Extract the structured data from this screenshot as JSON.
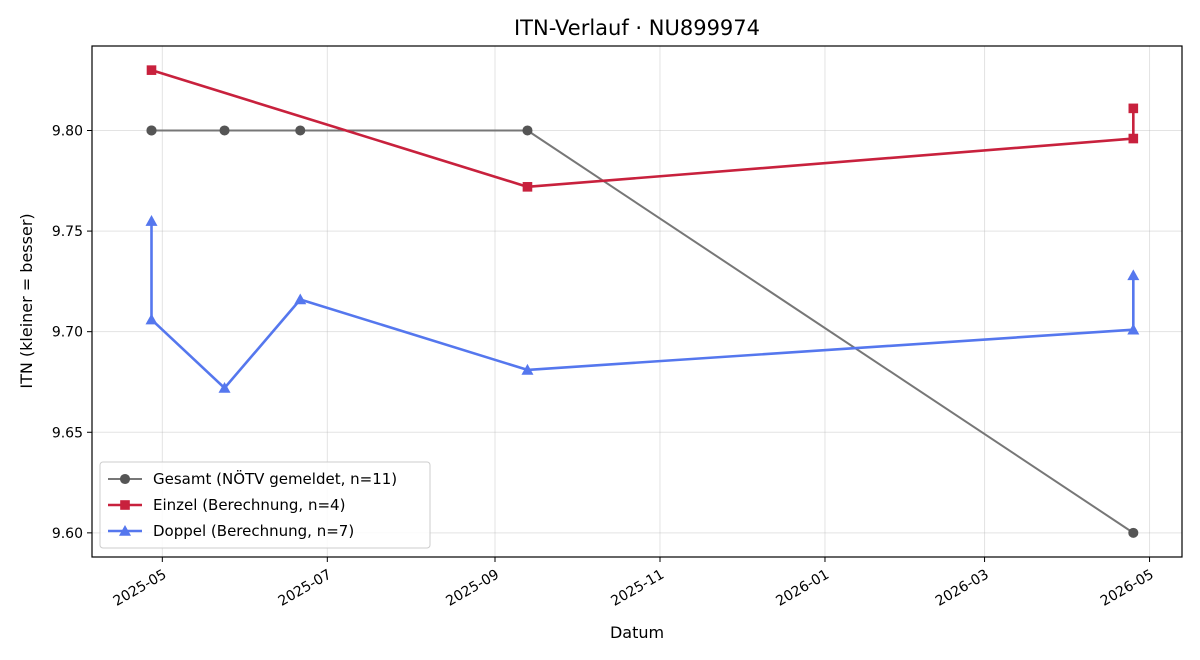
{
  "chart_data": {
    "type": "line",
    "title": "ITN-Verlauf · NU899974",
    "xlabel": "Datum",
    "ylabel": "ITN  (kleiner = besser)",
    "xlim": [
      "2025-04-05",
      "2026-05-13"
    ],
    "ylim": [
      9.588,
      9.842
    ],
    "x_ticks": [
      "2025-05",
      "2025-07",
      "2025-09",
      "2025-11",
      "2026-01",
      "2026-03",
      "2026-05"
    ],
    "y_ticks": [
      "9.60",
      "9.65",
      "9.70",
      "9.75",
      "9.80"
    ],
    "grid": true,
    "legend_position": "lower-left",
    "series": [
      {
        "name": "Gesamt (NÖTV gemeldet, n=11)",
        "color": "#777777",
        "marker": "circle",
        "points": [
          {
            "x": "2025-04-27",
            "y": 9.8
          },
          {
            "x": "2025-04-27",
            "y": 9.8
          },
          {
            "x": "2025-05-24",
            "y": 9.8
          },
          {
            "x": "2025-06-21",
            "y": 9.8
          },
          {
            "x": "2025-09-13",
            "y": 9.8
          },
          {
            "x": "2026-04-25",
            "y": 9.6
          }
        ]
      },
      {
        "name": "Einzel (Berechnung, n=4)",
        "color": "#c8213d",
        "marker": "square",
        "points": [
          {
            "x": "2025-04-27",
            "y": 9.83
          },
          {
            "x": "2025-09-13",
            "y": 9.772
          },
          {
            "x": "2026-04-25",
            "y": 9.796
          },
          {
            "x": "2026-04-25",
            "y": 9.811
          }
        ]
      },
      {
        "name": "Doppel (Berechnung, n=7)",
        "color": "#5577ee",
        "marker": "triangle",
        "points": [
          {
            "x": "2025-04-27",
            "y": 9.755
          },
          {
            "x": "2025-04-27",
            "y": 9.706
          },
          {
            "x": "2025-05-24",
            "y": 9.672
          },
          {
            "x": "2025-06-21",
            "y": 9.716
          },
          {
            "x": "2025-09-13",
            "y": 9.681
          },
          {
            "x": "2026-04-25",
            "y": 9.701
          },
          {
            "x": "2026-04-25",
            "y": 9.728
          }
        ]
      }
    ]
  }
}
